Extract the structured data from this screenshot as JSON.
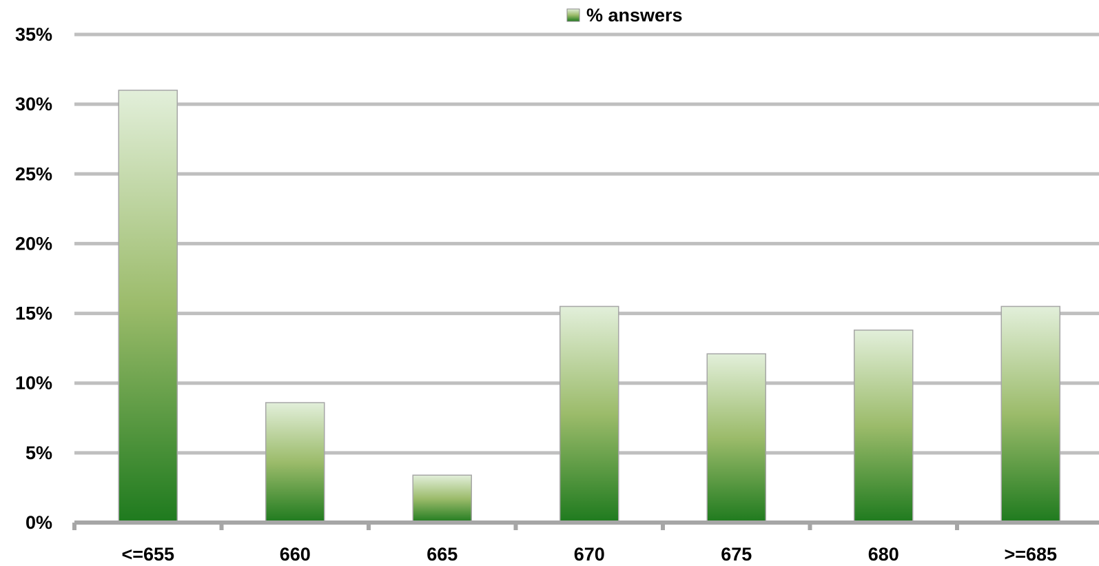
{
  "chart_data": {
    "type": "bar",
    "title": "",
    "xlabel": "",
    "ylabel": "",
    "categories": [
      "<=655",
      "660",
      "665",
      "670",
      "675",
      "680",
      ">=685"
    ],
    "series": [
      {
        "name": "% answers",
        "values": [
          31.0,
          8.6,
          3.4,
          15.5,
          12.1,
          13.8,
          15.5
        ]
      }
    ],
    "ylim": [
      0,
      35
    ],
    "y_ticks": [
      0,
      5,
      10,
      15,
      20,
      25,
      30,
      35
    ],
    "y_tick_labels": [
      "0%",
      "5%",
      "10%",
      "15%",
      "20%",
      "25%",
      "30%",
      "35%"
    ],
    "grid": true,
    "legend": "top-center",
    "colors": {
      "bar_top": "#e2efda",
      "bar_mid": "#9bbb6a",
      "bar_bottom": "#1e7a1e",
      "bar_border": "#a6a6a6",
      "grid": "#bfbfbf",
      "axis": "#a6a6a6"
    }
  }
}
